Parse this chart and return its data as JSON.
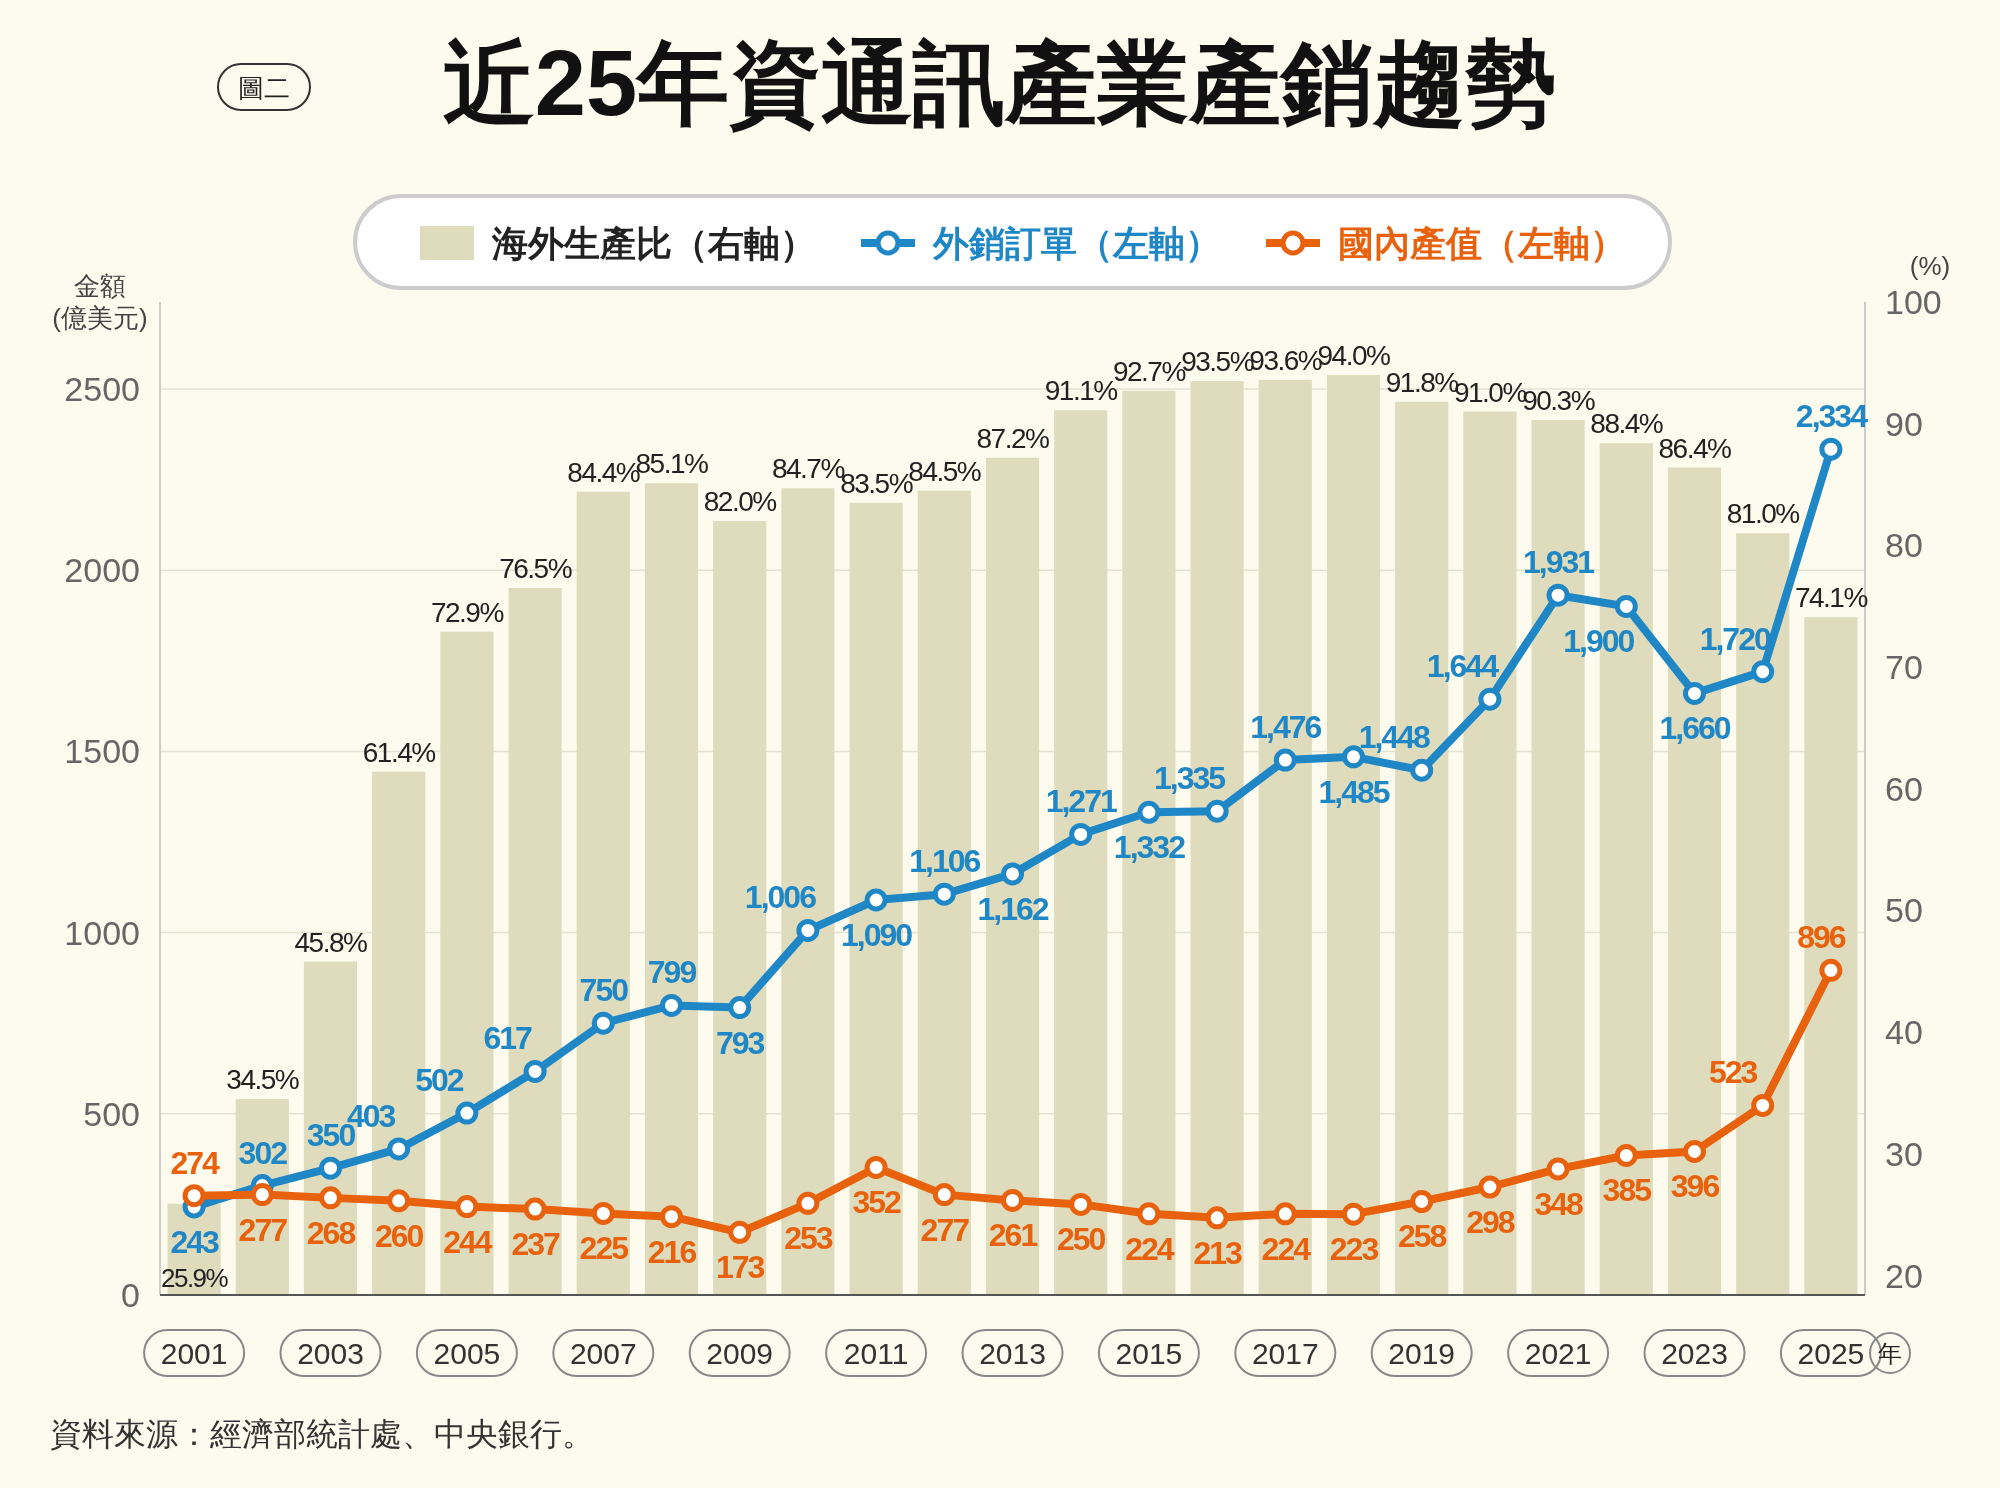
{
  "chart_data": {
    "type": "line",
    "title": "近25年資通訊產業產銷趨勢",
    "xlabel": "年",
    "ylabel": "金額\n(億美元)",
    "y2label": "(%)",
    "annotations": [
      "圖二",
      "資料來源：經濟部統計處、中央銀行。"
    ],
    "categories": [
      "2001",
      null,
      "2003",
      null,
      "2005",
      null,
      "2007",
      null,
      "2009",
      null,
      "2011",
      null,
      "2013",
      null,
      "2015",
      null,
      "2017",
      null,
      "2019",
      null,
      "2021",
      null,
      "2023",
      null,
      "2025"
    ],
    "series": [
      {
        "name": "海外生產比（右軸）",
        "type": "bar",
        "axis": "y2",
        "color": "#dfdcbd",
        "values": [
          25.9,
          34.5,
          45.8,
          61.4,
          72.9,
          76.5,
          84.4,
          85.1,
          82.0,
          84.7,
          83.5,
          84.5,
          87.2,
          91.1,
          92.7,
          93.5,
          93.6,
          94.0,
          91.8,
          91.0,
          90.3,
          88.4,
          86.4,
          81.0,
          74.1
        ],
        "value_labels": [
          "25.9%",
          "34.5%",
          "45.8%",
          "61.4%",
          "72.9%",
          "76.5%",
          "84.4%",
          "85.1%",
          "82.0%",
          "84.7%",
          "83.5%",
          "84.5%",
          "87.2%",
          "91.1%",
          "92.7%",
          "93.5%",
          "93.6%",
          "94.0%",
          "91.8%",
          "91.0%",
          "90.3%",
          "88.4%",
          "86.4%",
          "81.0%",
          "74.1%"
        ]
      },
      {
        "name": "外銷訂單（左軸）",
        "type": "line",
        "color": "#1f87c6",
        "values": [
          243,
          302,
          350,
          403,
          502,
          617,
          750,
          799,
          793,
          1006,
          1090,
          1106,
          1162,
          1271,
          1332,
          1335,
          1476,
          1485,
          1448,
          1644,
          1931,
          1900,
          1660,
          1720,
          2334
        ],
        "value_labels": [
          "243",
          "302",
          "350",
          "403",
          "502",
          "617",
          "750",
          "799",
          "793",
          "1,006",
          "1,090",
          "1,106",
          "1,162",
          "1,271",
          "1,332",
          "1,335",
          "1,476",
          "1,485",
          "1,448",
          "1,644",
          "1,931",
          "1,900",
          "1,660",
          "1,720",
          "2,334"
        ]
      },
      {
        "name": "國內產值（左軸）",
        "type": "line",
        "color": "#e8620e",
        "values": [
          274,
          277,
          268,
          260,
          244,
          237,
          225,
          216,
          173,
          253,
          352,
          277,
          261,
          250,
          224,
          213,
          224,
          223,
          258,
          298,
          348,
          385,
          396,
          523,
          896
        ],
        "value_labels": [
          "274",
          "277",
          "268",
          "260",
          "244",
          "237",
          "225",
          "216",
          "173",
          "253",
          "352",
          "277",
          "261",
          "250",
          "224",
          "213",
          "224",
          "223",
          "258",
          "298",
          "348",
          "385",
          "396",
          "523",
          "896"
        ]
      }
    ],
    "ylim": [
      0,
      2740
    ],
    "yticks": [
      0,
      500,
      1000,
      1500,
      2000,
      2500
    ],
    "y2lim": [
      18.4,
      100
    ],
    "y2ticks": [
      20,
      30,
      40,
      50,
      60,
      70,
      80,
      90,
      100
    ],
    "grid": "y",
    "legend": "top",
    "marker": "circle",
    "line_style": "solid"
  }
}
